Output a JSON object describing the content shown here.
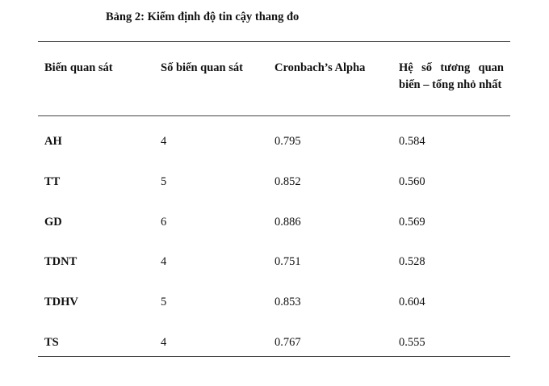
{
  "title": "Bảng 2: Kiểm định độ tin cậy thang đo",
  "table": {
    "headers": [
      "Biến quan sát",
      "Số biến quan sát",
      "Cronbach’s Alpha",
      "Hệ số tương quan biến – tổng nhỏ nhất"
    ],
    "rows": [
      [
        "AH",
        "4",
        "0.795",
        "0.584"
      ],
      [
        "TT",
        "5",
        "0.852",
        "0.560"
      ],
      [
        "GD",
        "6",
        "0.886",
        "0.569"
      ],
      [
        "TDNT",
        "4",
        "0.751",
        "0.528"
      ],
      [
        "TDHV",
        "5",
        "0.853",
        "0.604"
      ],
      [
        "TS",
        "4",
        "0.767",
        "0.555"
      ]
    ]
  }
}
